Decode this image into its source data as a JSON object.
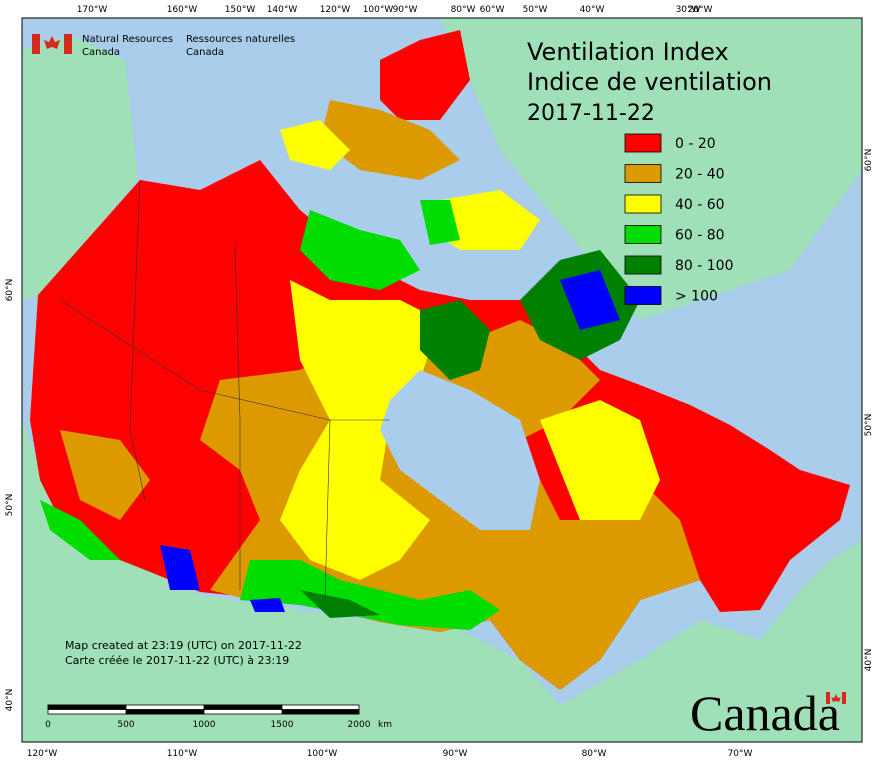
{
  "header": {
    "title": "Ventilation Index",
    "title_fr": "Indice de ventilation",
    "date": "2017-11-22"
  },
  "agency": {
    "name_en": [
      "Natural Resources",
      "Canada"
    ],
    "name_fr": [
      "Ressources naturelles",
      "Canada"
    ]
  },
  "legend": [
    {
      "color": "#ff0000",
      "label": "0 - 20"
    },
    {
      "color": "#dd9900",
      "label": "20 - 40"
    },
    {
      "color": "#ffff00",
      "label": "40 - 60"
    },
    {
      "color": "#00dd00",
      "label": "60 - 80"
    },
    {
      "color": "#008000",
      "label": "80 - 100"
    },
    {
      "color": "#0000ff",
      "label": "> 100"
    }
  ],
  "graticule": {
    "top": [
      "170°W",
      "160°W",
      "150°W",
      "140°W",
      "120°W",
      "100°W",
      "90°W",
      "80°W",
      "60°W",
      "50°W",
      "40°W",
      "30°W",
      "20°W"
    ],
    "bottom": [
      "120°W",
      "110°W",
      "100°W",
      "90°W",
      "80°W",
      "70°W"
    ],
    "left": [
      "60°N",
      "50°N",
      "40°N"
    ],
    "right": [
      "60°N",
      "50°N",
      "40°N"
    ]
  },
  "credit": [
    "Map created at 23:19 (UTC) on 2017-11-22",
    "Carte créée le 2017-11-22 (UTC) à 23:19"
  ],
  "scale": {
    "labels": [
      "0",
      "500",
      "1000",
      "1500",
      "2000"
    ],
    "unit": "km"
  },
  "wordmark": "Canada"
}
